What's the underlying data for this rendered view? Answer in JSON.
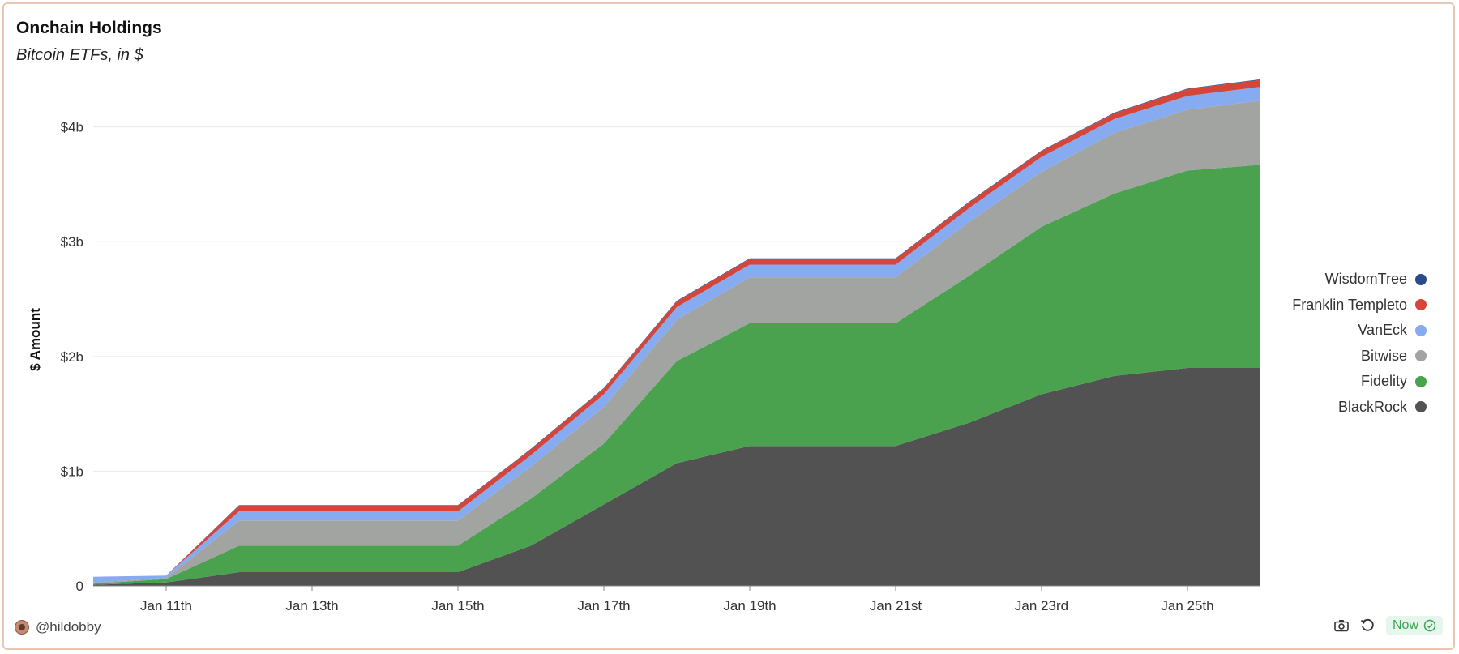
{
  "header": {
    "title": "Onchain Holdings",
    "subtitle": "Bitcoin ETFs, in $"
  },
  "footer": {
    "handle": "@hildobby",
    "now_label": "Now",
    "icons": [
      "camera-icon",
      "refresh-icon",
      "check-circle-icon"
    ]
  },
  "chart_data": {
    "type": "area",
    "stacked": true,
    "ylabel": "$ Amount",
    "ylim": [
      0,
      4.4
    ],
    "yticks": [
      0,
      1,
      2,
      3,
      4
    ],
    "ytick_labels": [
      "0",
      "$1b",
      "$2b",
      "$3b",
      "$4b"
    ],
    "grid": true,
    "legend_position": "right",
    "x": [
      "Jan 10th",
      "Jan 11th",
      "Jan 12th",
      "Jan 13th",
      "Jan 14th",
      "Jan 15th",
      "Jan 16th",
      "Jan 17th",
      "Jan 18th",
      "Jan 19th",
      "Jan 20th",
      "Jan 21st",
      "Jan 22nd",
      "Jan 23rd",
      "Jan 24th",
      "Jan 25th",
      "Jan 26th"
    ],
    "xticks": [
      "Jan 11th",
      "Jan 13th",
      "Jan 15th",
      "Jan 17th",
      "Jan 19th",
      "Jan 21st",
      "Jan 23rd",
      "Jan 25th"
    ],
    "series": [
      {
        "name": "BlackRock",
        "color": "#525252",
        "values": [
          0.01,
          0.03,
          0.12,
          0.12,
          0.12,
          0.12,
          0.35,
          0.71,
          1.07,
          1.22,
          1.22,
          1.22,
          1.42,
          1.67,
          1.83,
          1.9,
          1.9
        ]
      },
      {
        "name": "Fidelity",
        "color": "#4aa24e",
        "values": [
          0.01,
          0.03,
          0.23,
          0.23,
          0.23,
          0.23,
          0.41,
          0.53,
          0.89,
          1.07,
          1.07,
          1.07,
          1.28,
          1.46,
          1.59,
          1.72,
          1.77
        ]
      },
      {
        "name": "Bitwise",
        "color": "#a2a4a2",
        "values": [
          0.01,
          0.01,
          0.22,
          0.22,
          0.22,
          0.22,
          0.28,
          0.32,
          0.36,
          0.4,
          0.4,
          0.4,
          0.47,
          0.48,
          0.53,
          0.53,
          0.56
        ]
      },
      {
        "name": "VanEck",
        "color": "#86abf0",
        "values": [
          0.05,
          0.02,
          0.08,
          0.08,
          0.08,
          0.08,
          0.1,
          0.11,
          0.11,
          0.11,
          0.11,
          0.11,
          0.12,
          0.13,
          0.12,
          0.12,
          0.12
        ]
      },
      {
        "name": "Franklin Templeto",
        "color": "#d5453a",
        "values": [
          0.0,
          0.0,
          0.05,
          0.05,
          0.05,
          0.05,
          0.05,
          0.05,
          0.05,
          0.05,
          0.05,
          0.05,
          0.05,
          0.05,
          0.05,
          0.06,
          0.06
        ]
      },
      {
        "name": "WisdomTree",
        "color": "#2a4a8c",
        "values": [
          0.0,
          0.0,
          0.005,
          0.005,
          0.005,
          0.005,
          0.005,
          0.005,
          0.005,
          0.005,
          0.005,
          0.005,
          0.005,
          0.005,
          0.005,
          0.005,
          0.005
        ]
      }
    ]
  }
}
